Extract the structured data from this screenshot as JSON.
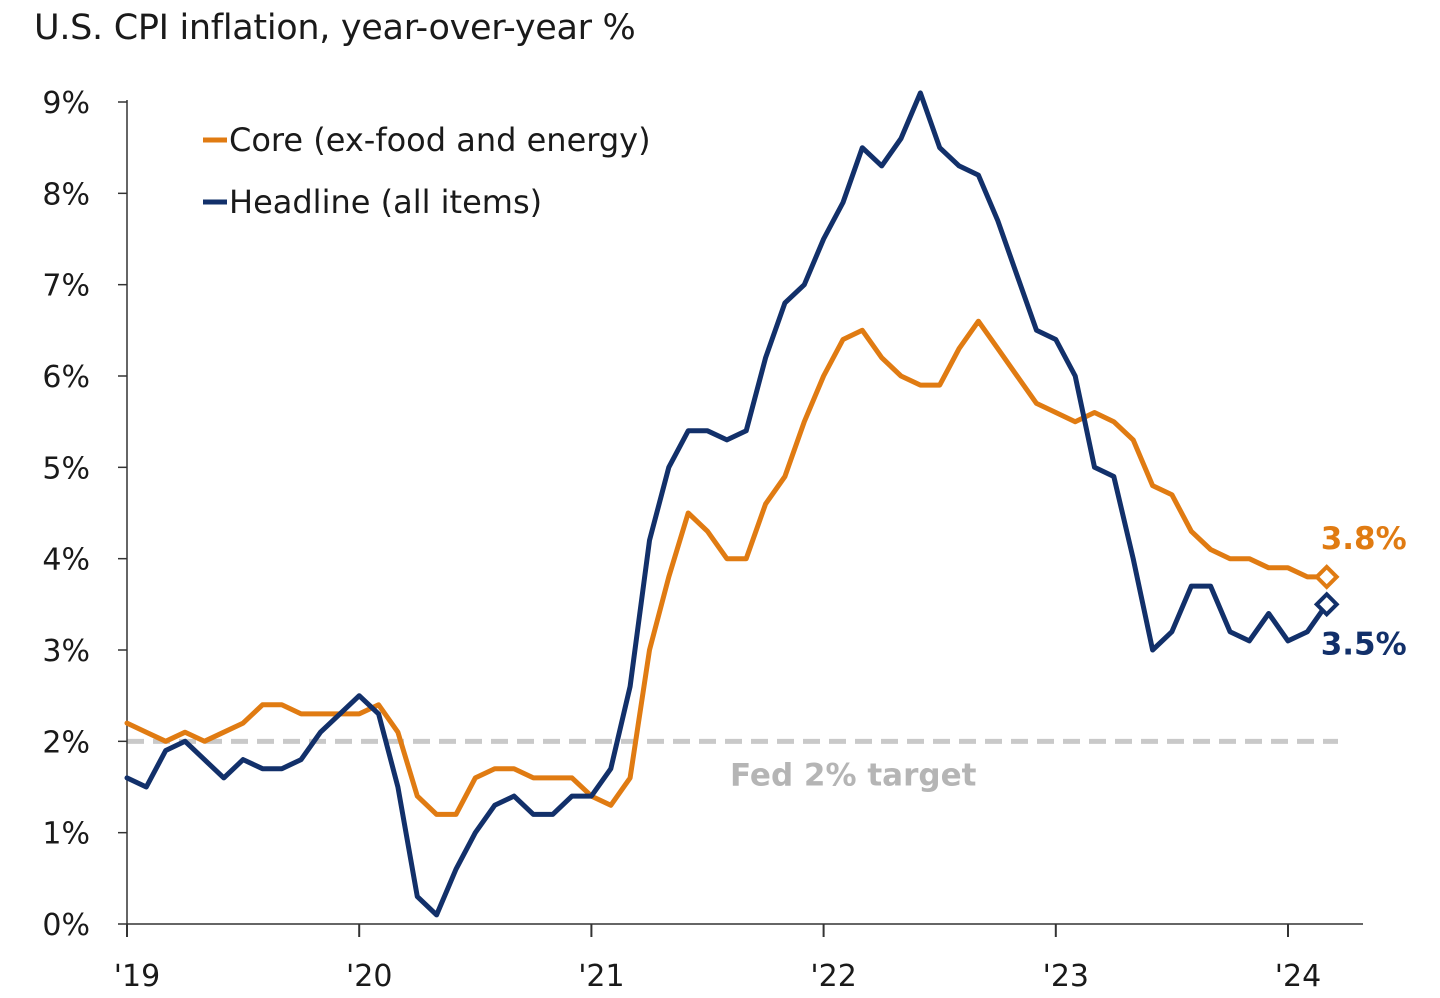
{
  "chart_data": {
    "type": "line",
    "title": "U.S. CPI inflation, year-over-year %",
    "xlabel": "",
    "ylabel": "",
    "ylim": [
      0,
      9
    ],
    "y_ticks": [
      0,
      1,
      2,
      3,
      4,
      5,
      6,
      7,
      8,
      9
    ],
    "y_tick_labels": [
      "0%",
      "1%",
      "2%",
      "3%",
      "4%",
      "5%",
      "6%",
      "7%",
      "8%",
      "9%"
    ],
    "x_ticks": [
      "2019-01",
      "2020-01",
      "2021-01",
      "2022-01",
      "2023-01",
      "2024-01"
    ],
    "x_tick_labels": [
      "'19",
      "'20",
      "'21",
      "'22",
      "'23",
      "'24"
    ],
    "x_start": "2019-01",
    "x_end": "2024-03",
    "grid": false,
    "legend_position": "top-left",
    "series": [
      {
        "name": "Core (ex-food and energy)",
        "color": "#e07b12",
        "values": [
          2.2,
          2.1,
          2.0,
          2.1,
          2.0,
          2.1,
          2.2,
          2.4,
          2.4,
          2.3,
          2.3,
          2.3,
          2.3,
          2.4,
          2.1,
          1.4,
          1.2,
          1.2,
          1.6,
          1.7,
          1.7,
          1.6,
          1.6,
          1.6,
          1.4,
          1.3,
          1.6,
          3.0,
          3.8,
          4.5,
          4.3,
          4.0,
          4.0,
          4.6,
          4.9,
          5.5,
          6.0,
          6.4,
          6.5,
          6.2,
          6.0,
          5.9,
          5.9,
          6.3,
          6.6,
          6.3,
          6.0,
          5.7,
          5.6,
          5.5,
          5.6,
          5.5,
          5.3,
          4.8,
          4.7,
          4.3,
          4.1,
          4.0,
          4.0,
          3.9,
          3.9,
          3.8,
          3.8
        ],
        "end_label": "3.8%"
      },
      {
        "name": "Headline (all items)",
        "color": "#12306a",
        "values": [
          1.6,
          1.5,
          1.9,
          2.0,
          1.8,
          1.6,
          1.8,
          1.7,
          1.7,
          1.8,
          2.1,
          2.3,
          2.5,
          2.3,
          1.5,
          0.3,
          0.1,
          0.6,
          1.0,
          1.3,
          1.4,
          1.2,
          1.2,
          1.4,
          1.4,
          1.7,
          2.6,
          4.2,
          5.0,
          5.4,
          5.4,
          5.3,
          5.4,
          6.2,
          6.8,
          7.0,
          7.5,
          7.9,
          8.5,
          8.3,
          8.6,
          9.1,
          8.5,
          8.3,
          8.2,
          7.7,
          7.1,
          6.5,
          6.4,
          6.0,
          5.0,
          4.9,
          4.0,
          3.0,
          3.2,
          3.7,
          3.7,
          3.2,
          3.1,
          3.4,
          3.1,
          3.2,
          3.5
        ],
        "end_label": "3.5%"
      }
    ],
    "reference_line": {
      "value": 2,
      "label": "Fed 2% target",
      "color": "#c9c9c9"
    }
  }
}
